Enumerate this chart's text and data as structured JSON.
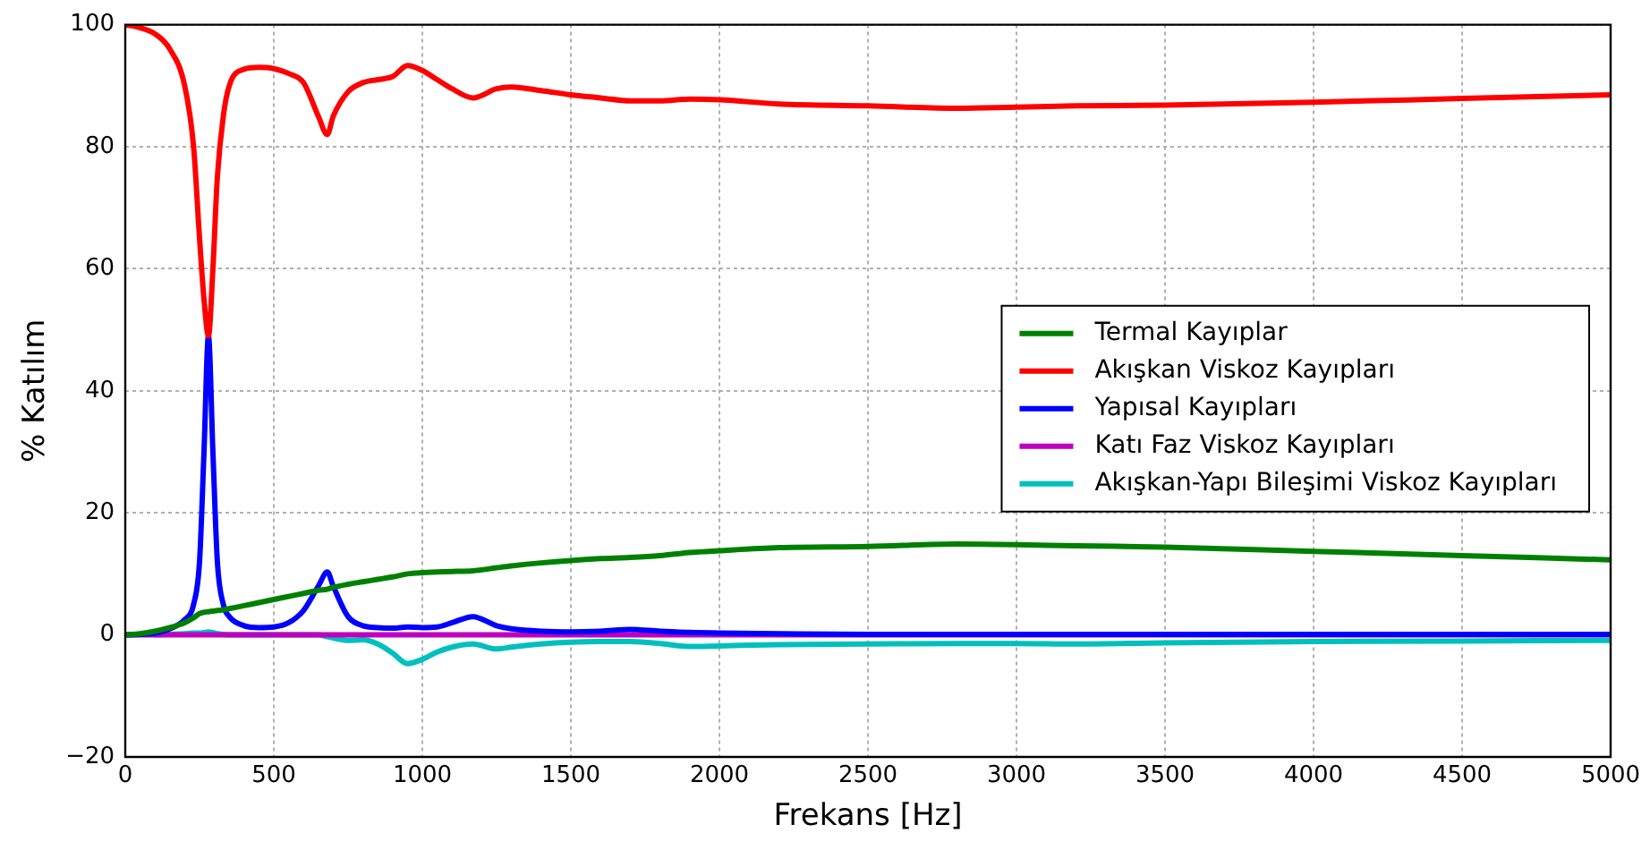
{
  "chart_data": {
    "type": "line",
    "xlabel": "Frekans [Hz]",
    "ylabel": "% Katılım",
    "x": [
      0,
      50,
      100,
      150,
      200,
      230,
      250,
      265,
      280,
      295,
      310,
      330,
      350,
      400,
      450,
      500,
      550,
      600,
      650,
      680,
      700,
      750,
      800,
      850,
      900,
      950,
      1000,
      1050,
      1100,
      1170,
      1250,
      1300,
      1400,
      1500,
      1600,
      1700,
      1800,
      1900,
      2000,
      2200,
      2500,
      2800,
      3000,
      3200,
      3500,
      4000,
      4500,
      5000
    ],
    "series": [
      {
        "name": "Termal Kayıplar",
        "color": "#008000",
        "values": [
          0,
          0.2,
          0.6,
          1.2,
          2,
          2.8,
          3.5,
          3.7,
          3.8,
          3.9,
          4,
          4.1,
          4.3,
          4.8,
          5.3,
          5.8,
          6.3,
          6.8,
          7.3,
          7.5,
          7.8,
          8.3,
          8.7,
          9.1,
          9.5,
          10,
          10.2,
          10.3,
          10.4,
          10.5,
          11,
          11.3,
          11.8,
          12.2,
          12.5,
          12.7,
          13,
          13.5,
          13.8,
          14.3,
          14.5,
          14.9,
          14.8,
          14.6,
          14.4,
          13.7,
          13,
          12.3
        ]
      },
      {
        "name": "Akışkan Viskoz Kayıpları",
        "color": "#ff0000",
        "values": [
          100,
          99.5,
          98.5,
          96,
          90,
          80,
          65,
          55,
          49,
          60,
          75,
          85,
          90,
          92.7,
          93,
          92.8,
          92,
          90.5,
          85,
          82,
          85,
          89,
          90.5,
          91,
          91.5,
          93.3,
          92.5,
          91,
          89.5,
          88,
          89.5,
          89.8,
          89.2,
          88.5,
          88,
          87.5,
          87.5,
          87.8,
          87.7,
          87,
          86.7,
          86.3,
          86.5,
          86.7,
          86.8,
          87.3,
          87.9,
          88.5
        ]
      },
      {
        "name": "Yapısal Kayıpları",
        "color": "#0000ff",
        "values": [
          0,
          0.1,
          0.3,
          1,
          2.5,
          5,
          12,
          30,
          49,
          30,
          12,
          5,
          3,
          1.5,
          1.2,
          1.3,
          2,
          4,
          8,
          10.3,
          8,
          3,
          1.5,
          1.2,
          1.1,
          1.3,
          1.2,
          1.3,
          2,
          3,
          1.5,
          1,
          0.6,
          0.5,
          0.6,
          0.9,
          0.6,
          0.4,
          0.3,
          0.2,
          0.1,
          0.1,
          0.1,
          0.1,
          0.1,
          0.1,
          0.1,
          0.1
        ]
      },
      {
        "name": "Katı Faz Viskoz Kayıpları",
        "color": "#bf00bf",
        "x": [
          0,
          5000
        ],
        "values": [
          0,
          0
        ]
      },
      {
        "name": "Akışkan-Yapı Bileşimi Viskoz Kayıpları",
        "color": "#00bfbf",
        "values": [
          null,
          null,
          0,
          0.1,
          0.2,
          0.3,
          0.3,
          0.4,
          0.5,
          0.4,
          0.2,
          0.1,
          0,
          0,
          0,
          0,
          0,
          0,
          0,
          -0.3,
          -0.5,
          -0.9,
          -0.8,
          -1.5,
          -3,
          -4.7,
          -4,
          -2.8,
          -2,
          -1.5,
          -2.3,
          -2,
          -1.5,
          -1.2,
          -1.1,
          -1.1,
          -1.4,
          -1.9,
          -1.8,
          -1.6,
          -1.5,
          -1.4,
          -1.4,
          -1.5,
          -1.3,
          -1.1,
          -1,
          -0.9
        ]
      }
    ],
    "xlim": [
      0,
      5000
    ],
    "xticks": [
      0,
      500,
      1000,
      1500,
      2000,
      2500,
      3000,
      3500,
      4000,
      4500,
      5000
    ],
    "ylim": [
      -20,
      100
    ],
    "yticks": [
      -20,
      0,
      20,
      40,
      60,
      80,
      100
    ],
    "grid": true,
    "legend": "center right",
    "marker": "none",
    "line_style": "solid"
  }
}
